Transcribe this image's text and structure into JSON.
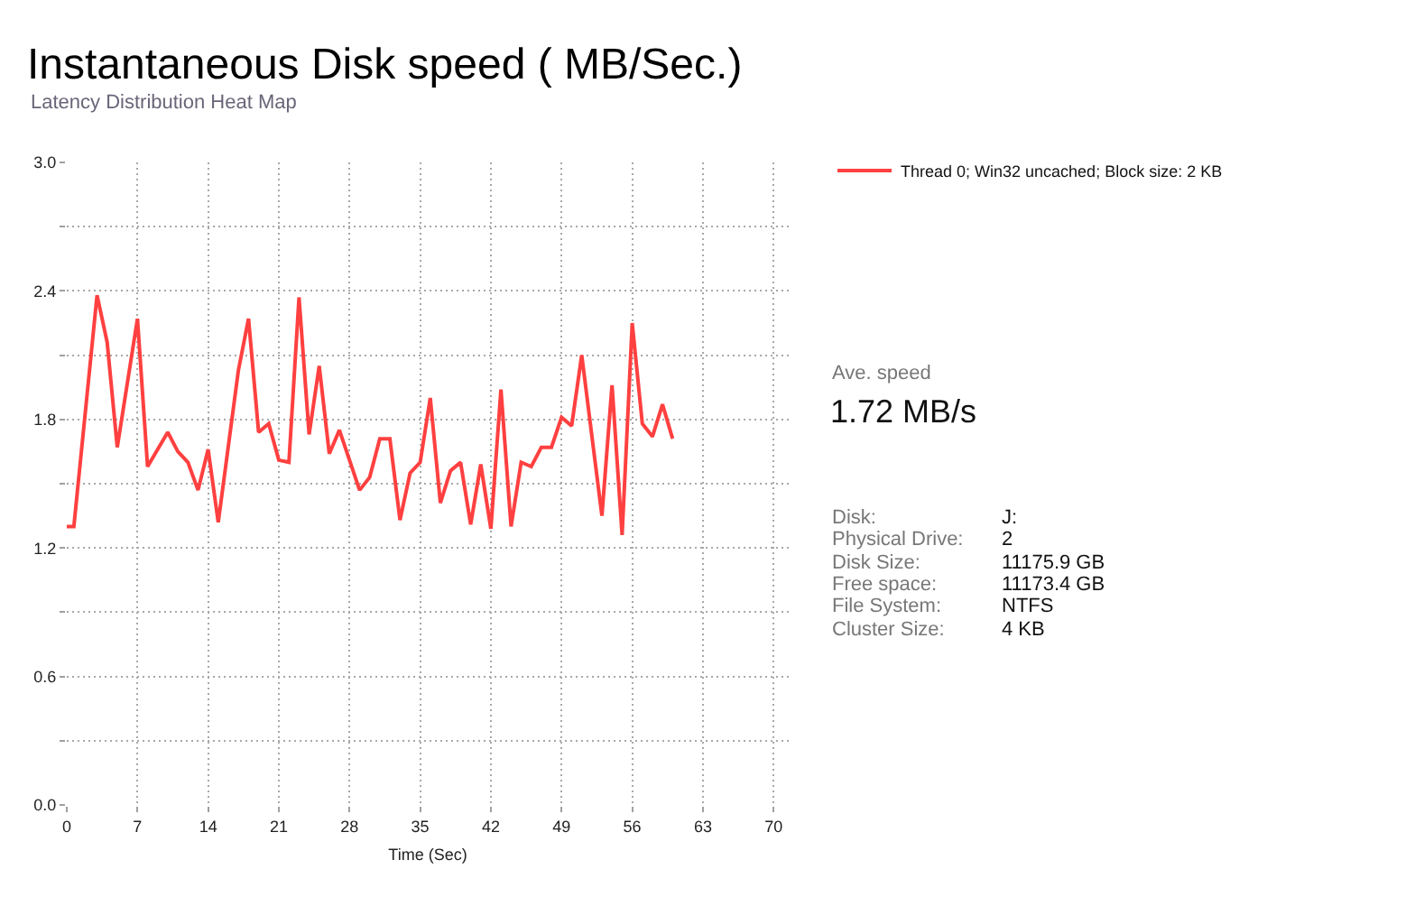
{
  "chart_data": {
    "type": "line",
    "title": "Instantaneous Disk speed ( MB/Sec.)",
    "subtitle": "Latency Distribution Heat Map",
    "xlabel": "Time (Sec)",
    "x": [
      0,
      0.7,
      3,
      4,
      5,
      7,
      8,
      10,
      11,
      12,
      13,
      14,
      15,
      17,
      18,
      19,
      20,
      21,
      22,
      23,
      24,
      25,
      26,
      27,
      29,
      30,
      31,
      32,
      33,
      34,
      35,
      36,
      37,
      38,
      39,
      40,
      41,
      42,
      43,
      44,
      45,
      46,
      47,
      48,
      49,
      50,
      51,
      53,
      54,
      55,
      56,
      57,
      58,
      59,
      60
    ],
    "series": [
      {
        "name": "Thread 0; Win32 uncached; Block size: 2 KB",
        "color": "#ff4040",
        "values": [
          1.3,
          1.3,
          2.38,
          2.16,
          1.67,
          2.27,
          1.58,
          1.74,
          1.65,
          1.6,
          1.47,
          1.66,
          1.32,
          2.03,
          2.27,
          1.74,
          1.78,
          1.61,
          1.6,
          2.37,
          1.73,
          2.05,
          1.64,
          1.75,
          1.47,
          1.53,
          1.71,
          1.71,
          1.33,
          1.55,
          1.6,
          1.9,
          1.41,
          1.56,
          1.6,
          1.31,
          1.59,
          1.29,
          1.94,
          1.3,
          1.6,
          1.58,
          1.67,
          1.67,
          1.81,
          1.77,
          2.1,
          1.35,
          1.96,
          1.26,
          2.25,
          1.78,
          1.72,
          1.87,
          1.71
        ]
      }
    ],
    "xlim": [
      0,
      71.5
    ],
    "xticks": [
      0,
      7,
      14,
      21,
      28,
      35,
      42,
      49,
      56,
      63,
      70
    ],
    "ylim": [
      0,
      3.0
    ],
    "yticks": [
      {
        "value": 0,
        "label": "0.0"
      },
      {
        "value": 0.3,
        "label": null
      },
      0.6,
      {
        "value": 0.9,
        "label": null
      },
      1.2,
      {
        "value": 1.5,
        "label": null
      },
      1.8,
      {
        "value": 2.1,
        "label": null
      },
      2.4,
      {
        "value": 2.7,
        "label": null
      },
      {
        "value": 3.0,
        "label": "3.0"
      }
    ],
    "grid": true,
    "legend": "top right",
    "marker": "none",
    "line_style": "solid",
    "annotations": [
      "Ave. speed",
      "1.72 MB/s",
      "Disk:",
      "J:",
      "Physical Drive:",
      "2",
      "Disk Size:",
      "11175.9 GB",
      "Free space:",
      "11173.4 GB",
      "File System:",
      "NTFS",
      "Cluster Size:",
      "4 KB"
    ]
  }
}
